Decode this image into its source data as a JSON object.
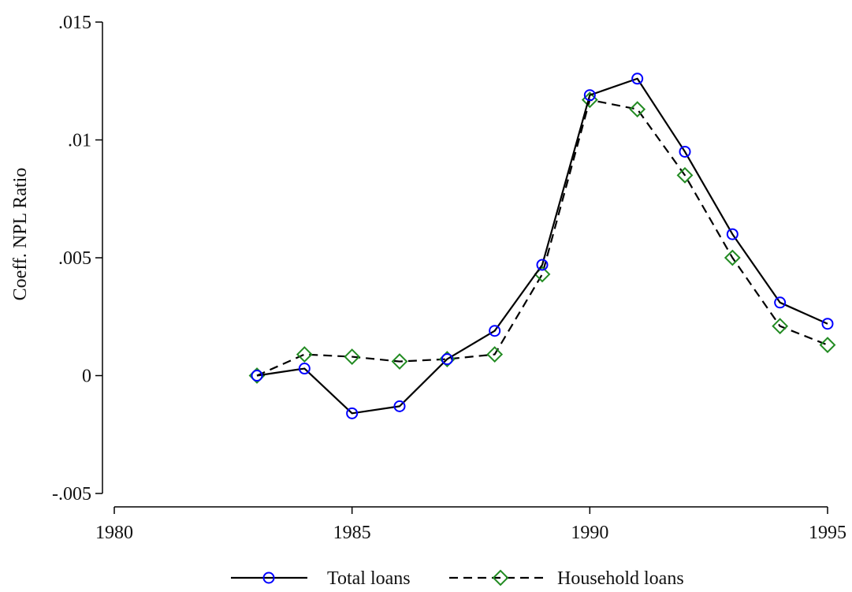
{
  "chart_data": {
    "type": "line",
    "title": "",
    "xlabel": "",
    "ylabel": "Coeff. NPL Ratio",
    "xlim": [
      1980,
      1995
    ],
    "ylim": [
      -0.005,
      0.015
    ],
    "xticks": [
      1980,
      1985,
      1990,
      1995
    ],
    "xtick_labels": [
      "1980",
      "1985",
      "1990",
      "1995"
    ],
    "yticks": [
      -0.005,
      0,
      0.005,
      0.01,
      0.015
    ],
    "ytick_labels": [
      "-.005",
      "0",
      ".005",
      ".01",
      ".015"
    ],
    "grid": false,
    "legend_position": "bottom",
    "series": [
      {
        "name": "Total loans",
        "color": "#0000ff",
        "line_color": "#000000",
        "line_style": "solid",
        "marker": "circle",
        "x": [
          1983,
          1984,
          1985,
          1986,
          1987,
          1988,
          1989,
          1990,
          1991,
          1992,
          1993,
          1994,
          1995
        ],
        "y": [
          0.0,
          0.0003,
          -0.0016,
          -0.0013,
          0.0007,
          0.0019,
          0.0047,
          0.0119,
          0.0126,
          0.0095,
          0.006,
          0.0031,
          0.0022
        ]
      },
      {
        "name": "Household loans",
        "color": "#228b22",
        "line_color": "#000000",
        "line_style": "dashed",
        "marker": "diamond",
        "x": [
          1983,
          1984,
          1985,
          1986,
          1987,
          1988,
          1989,
          1990,
          1991,
          1992,
          1993,
          1994,
          1995
        ],
        "y": [
          0.0,
          0.0009,
          0.0008,
          0.0006,
          0.0007,
          0.0009,
          0.0043,
          0.0117,
          0.0113,
          0.0085,
          0.005,
          0.0021,
          0.0013
        ]
      }
    ]
  }
}
